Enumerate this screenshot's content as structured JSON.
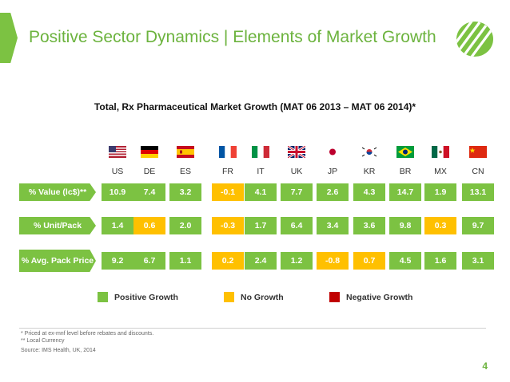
{
  "header": {
    "title": "Positive Sector Dynamics | Elements of Market Growth"
  },
  "table": {
    "subtitle": "Total, Rx Pharmaceutical Market Growth (MAT 06 2013 – MAT 06 2014)*",
    "countries": [
      "US",
      "DE",
      "ES",
      "FR",
      "IT",
      "UK",
      "JP",
      "KR",
      "BR",
      "MX",
      "CN"
    ],
    "rows": [
      {
        "label": "% Value (lc$)**",
        "values": [
          "10.9",
          "7.4",
          "3.2",
          "-0.1",
          "4.1",
          "7.7",
          "2.6",
          "4.3",
          "14.7",
          "1.9",
          "13.1"
        ],
        "status": [
          "pos",
          "pos",
          "pos",
          "none",
          "pos",
          "pos",
          "pos",
          "pos",
          "pos",
          "pos",
          "pos"
        ]
      },
      {
        "label": "% Unit/Pack",
        "values": [
          "1.4",
          "0.6",
          "2.0",
          "-0.3",
          "1.7",
          "6.4",
          "3.4",
          "3.6",
          "9.8",
          "0.3",
          "9.7"
        ],
        "status": [
          "pos",
          "none",
          "pos",
          "none",
          "pos",
          "pos",
          "pos",
          "pos",
          "pos",
          "none",
          "pos"
        ]
      },
      {
        "label": "% Avg. Pack Price",
        "values": [
          "9.2",
          "6.7",
          "1.1",
          "0.2",
          "2.4",
          "1.2",
          "-0.8",
          "0.7",
          "4.5",
          "1.6",
          "3.1"
        ],
        "status": [
          "pos",
          "pos",
          "pos",
          "none",
          "pos",
          "pos",
          "none",
          "none",
          "pos",
          "pos",
          "pos"
        ]
      }
    ]
  },
  "legend": {
    "positive": "Positive Growth",
    "none": "No Growth",
    "negative": "Negative Growth"
  },
  "colors": {
    "positive": "#7cc242",
    "none": "#ffc000",
    "negative": "#c00000",
    "brand": "#6cb33e"
  },
  "footnotes": {
    "note1": "* Priced at ex-mnf level before rebates and discounts.",
    "note2": "** Local Currency",
    "source": "Source: IMS Health, UK, 2014"
  },
  "page": {
    "number": "4"
  }
}
